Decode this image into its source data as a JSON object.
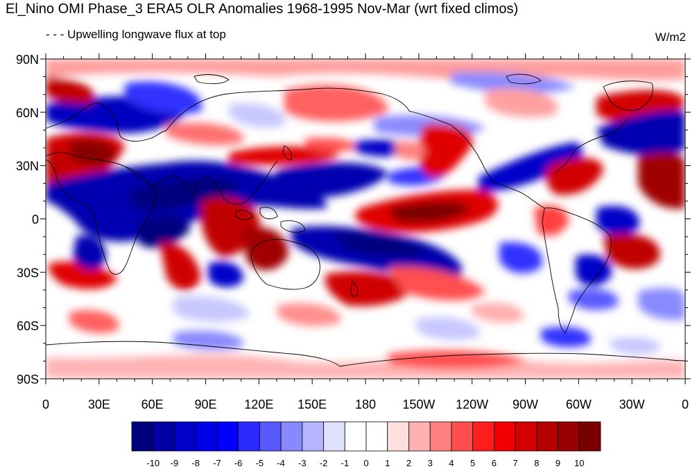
{
  "header": {
    "title": "El_Nino OMI Phase_3 ERA5 OLR Anomalies 1968-1995 Nov-Mar (wrt fixed climos)",
    "left_subtitle": "- - - Upwelling longwave flux at top",
    "right_subtitle": "W/m2"
  },
  "axes": {
    "x_ticks": [
      "0",
      "30E",
      "60E",
      "90E",
      "120E",
      "150E",
      "180",
      "150W",
      "120W",
      "90W",
      "60W",
      "30W",
      "0"
    ],
    "y_ticks": [
      "90N",
      "60N",
      "30N",
      "0",
      "30S",
      "60S",
      "90S"
    ]
  },
  "colorbar": {
    "labels": [
      "-10",
      "-9",
      "-8",
      "-7",
      "-6",
      "-5",
      "-4",
      "-3",
      "-2",
      "-1",
      "0",
      "1",
      "2",
      "3",
      "4",
      "5",
      "6",
      "7",
      "8",
      "9",
      "10"
    ],
    "colors": [
      "#00007f",
      "#0000a6",
      "#0000c8",
      "#0000e6",
      "#0000ff",
      "#2b2bff",
      "#5858ff",
      "#8888ff",
      "#b4b4ff",
      "#e0e0ff",
      "#ffffff",
      "#ffffff",
      "#ffdede",
      "#ffb0b0",
      "#ff8080",
      "#ff4e4e",
      "#ff1e1e",
      "#f00000",
      "#d20000",
      "#b40000",
      "#960000",
      "#7a0000"
    ]
  },
  "map": {
    "projection": "cylindrical equidistant",
    "longitude_range": "0 to 360",
    "latitude_range": "90S to 90N",
    "colors": {
      "strong_negative": "#0000b0",
      "moderate_negative": "#5a5aff",
      "weak_negative": "#c8c8ff",
      "weak_positive": "#ffc8c8",
      "moderate_positive": "#ff5050",
      "strong_positive": "#b40000",
      "coastline": "#000000"
    }
  }
}
